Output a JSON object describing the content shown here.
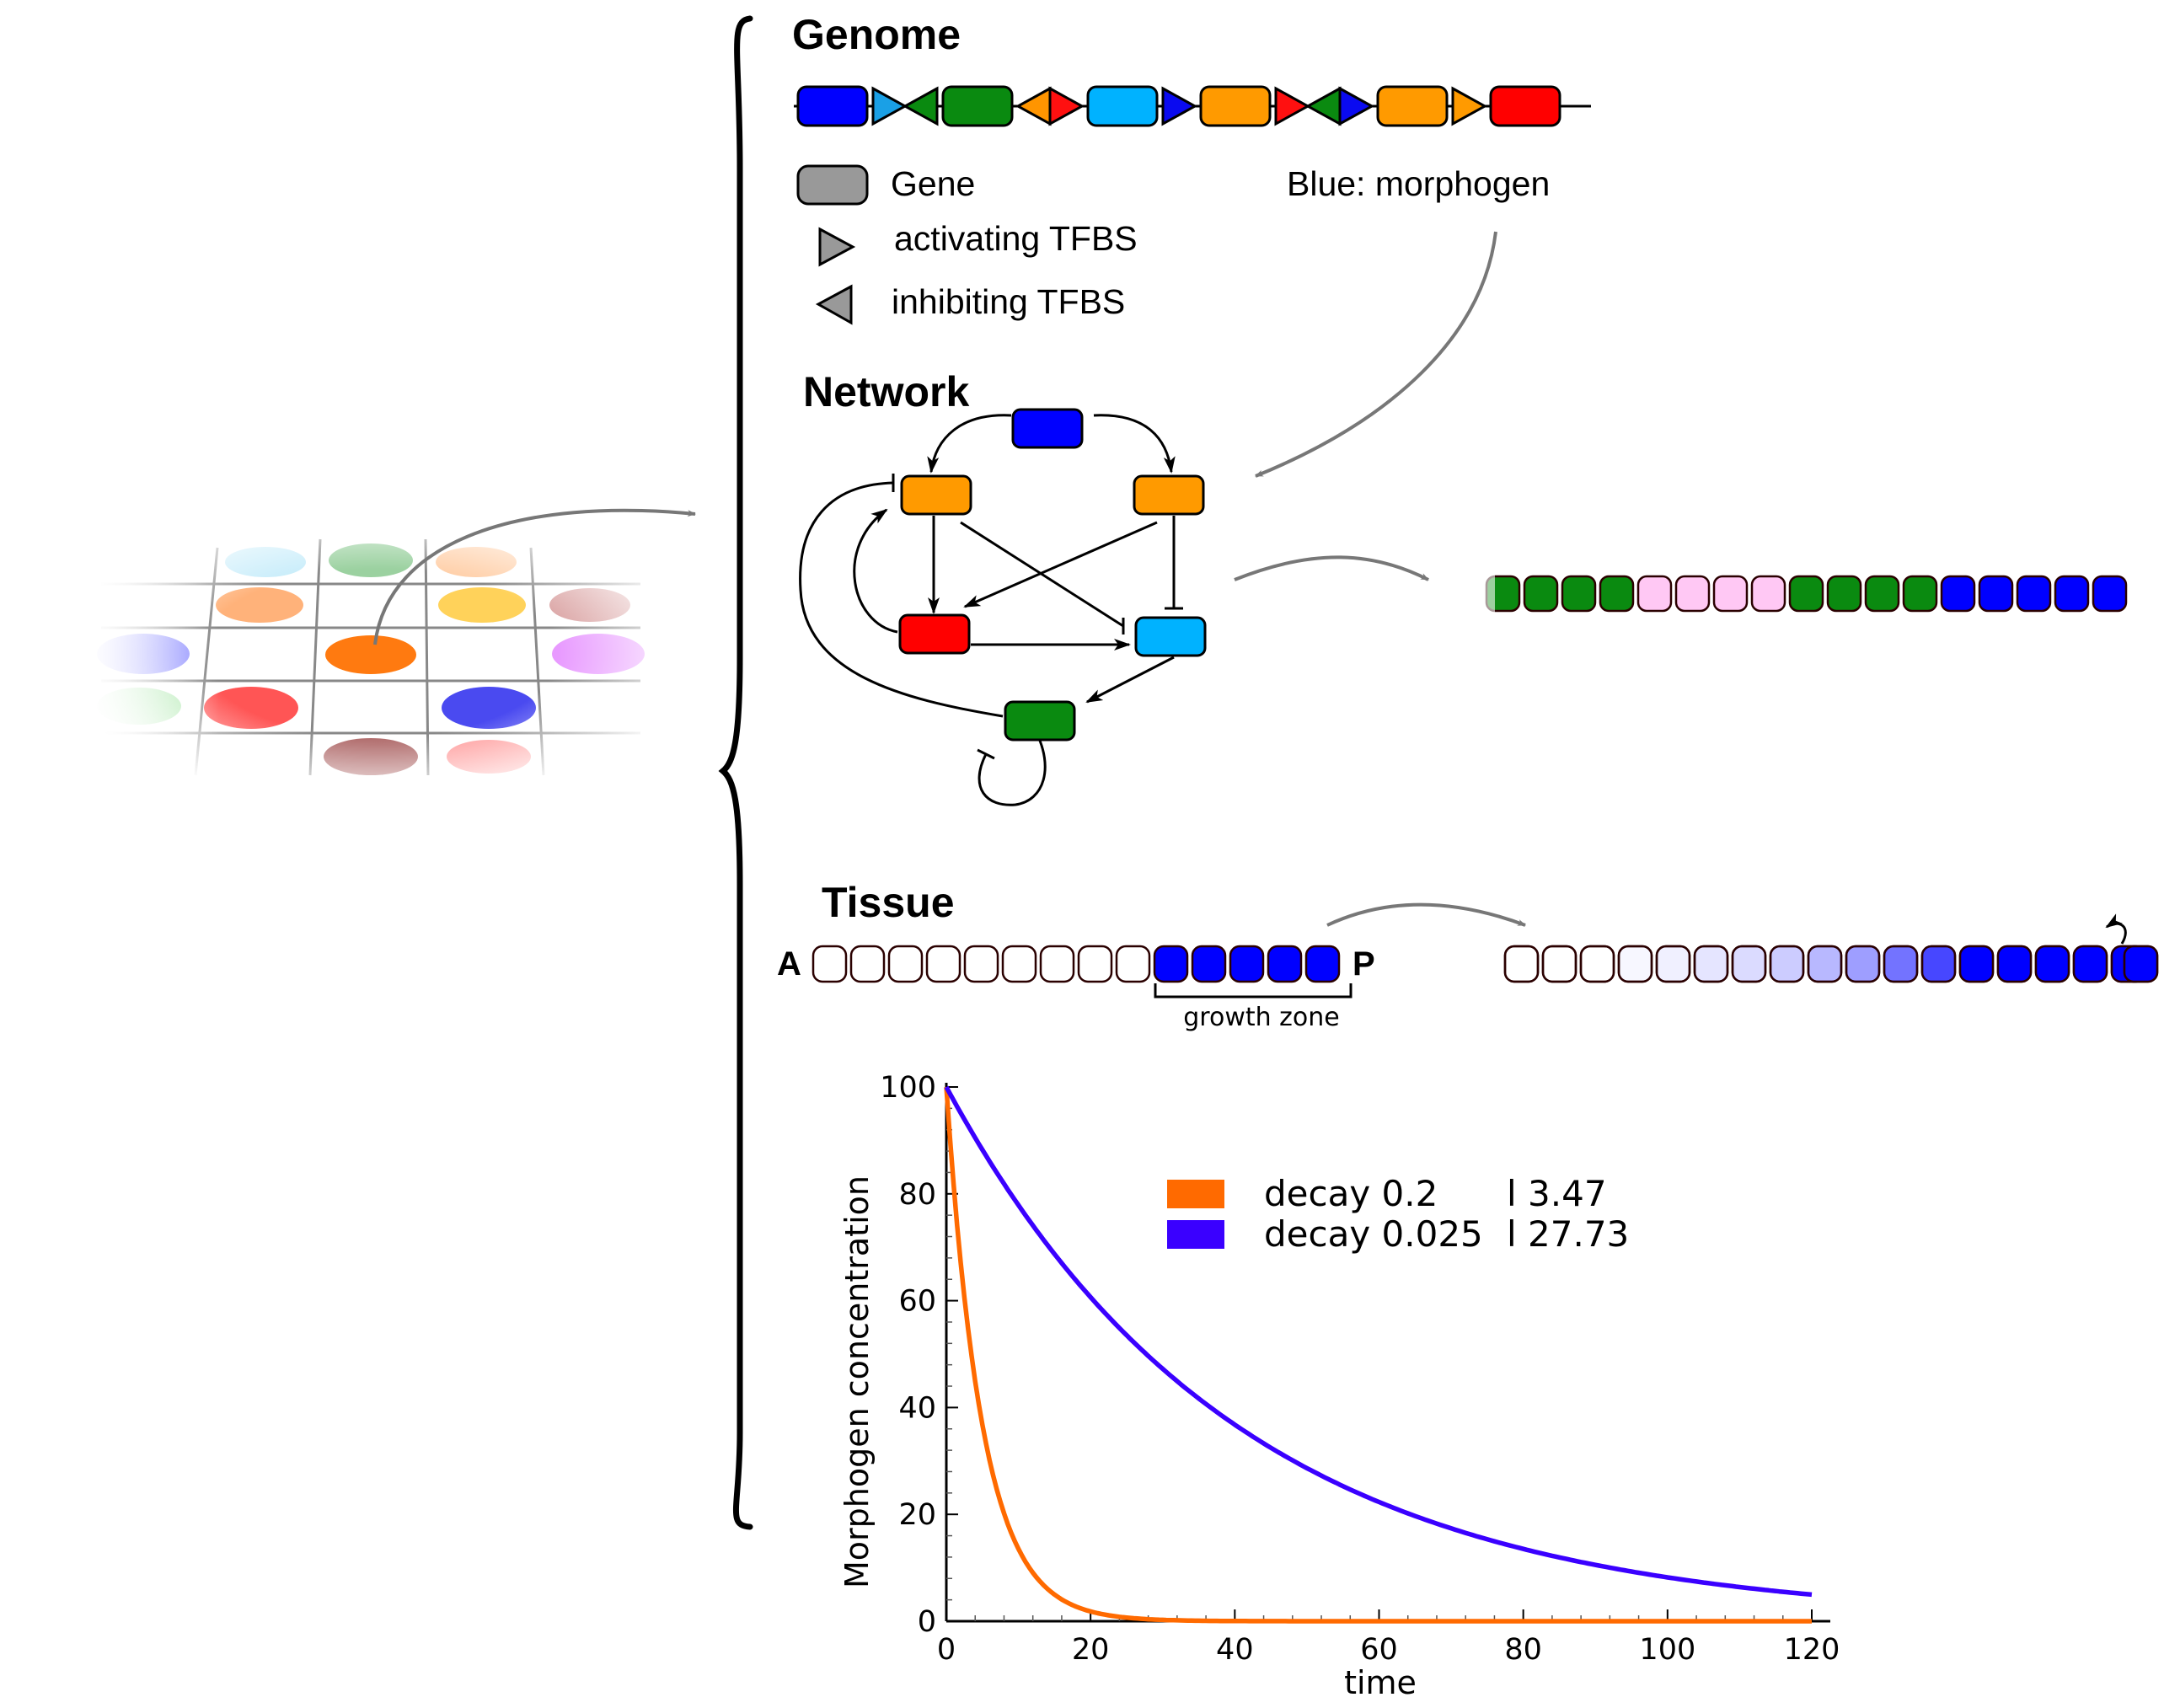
{
  "genome": {
    "title": "Genome",
    "sequence": [
      {
        "kind": "gene",
        "color": "#0000ff"
      },
      {
        "kind": "act",
        "color": "#1aa0e6"
      },
      {
        "kind": "inh",
        "color": "#0a8a10"
      },
      {
        "kind": "gene",
        "color": "#0a8a10"
      },
      {
        "kind": "inh",
        "color": "#ff9500"
      },
      {
        "kind": "act",
        "color": "#ff1010"
      },
      {
        "kind": "gene",
        "color": "#00b2ff"
      },
      {
        "kind": "act",
        "color": "#0a0af0"
      },
      {
        "kind": "gene",
        "color": "#ff9a00"
      },
      {
        "kind": "act",
        "color": "#ff1010"
      },
      {
        "kind": "inh",
        "color": "#0a8a10"
      },
      {
        "kind": "act",
        "color": "#0a0af0"
      },
      {
        "kind": "gene",
        "color": "#ff9a00"
      },
      {
        "kind": "act",
        "color": "#ff9a00"
      },
      {
        "kind": "gene",
        "color": "#ff0000"
      }
    ],
    "legend": {
      "gene": "Gene",
      "activating": "activating TFBS",
      "inhibiting": "inhibiting TFBS",
      "blue_note": "Blue: morphogen"
    }
  },
  "network": {
    "title": "Network",
    "nodes": {
      "morphogen": "#0000ff",
      "orange_left": "#ff9a00",
      "orange_right": "#ff9a00",
      "red": "#ff0000",
      "cyan": "#00b2ff",
      "green": "#0a8a10"
    },
    "expression_pattern": [
      "#0a8a10",
      "#0a8a10",
      "#0a8a10",
      "#0a8a10",
      "#ffc8f4",
      "#ffc8f4",
      "#ffc8f4",
      "#ffc8f4",
      "#0a8a10",
      "#0a8a10",
      "#0a8a10",
      "#0a8a10",
      "#0000ff",
      "#0000ff",
      "#0000ff",
      "#0000ff",
      "#0000ff"
    ]
  },
  "tissue": {
    "title": "Tissue",
    "anterior": "A",
    "posterior": "P",
    "growth_zone_label": "growth zone",
    "empty_cells": 9,
    "growth_cells": 5,
    "gradient_opacity": [
      0,
      0,
      0,
      0.03,
      0.06,
      0.1,
      0.14,
      0.2,
      0.28,
      0.38,
      0.55,
      0.72,
      1,
      1,
      1,
      1,
      1,
      1
    ]
  },
  "chart_data": {
    "type": "line",
    "xlabel": "time",
    "ylabel": "Morphogen concentration",
    "xlim": [
      0,
      120
    ],
    "ylim": [
      0,
      100
    ],
    "xticks": [
      0,
      20,
      40,
      60,
      80,
      100,
      120
    ],
    "yticks": [
      0,
      20,
      40,
      60,
      80,
      100
    ],
    "series": [
      {
        "name": "decay 0.2",
        "extra": "l 3.47",
        "color": "#ff6a00",
        "decay": 0.2,
        "start": 100
      },
      {
        "name": "decay 0.025",
        "extra": "l 27.73",
        "color": "#3a00ff",
        "decay": 0.025,
        "start": 100
      }
    ]
  }
}
